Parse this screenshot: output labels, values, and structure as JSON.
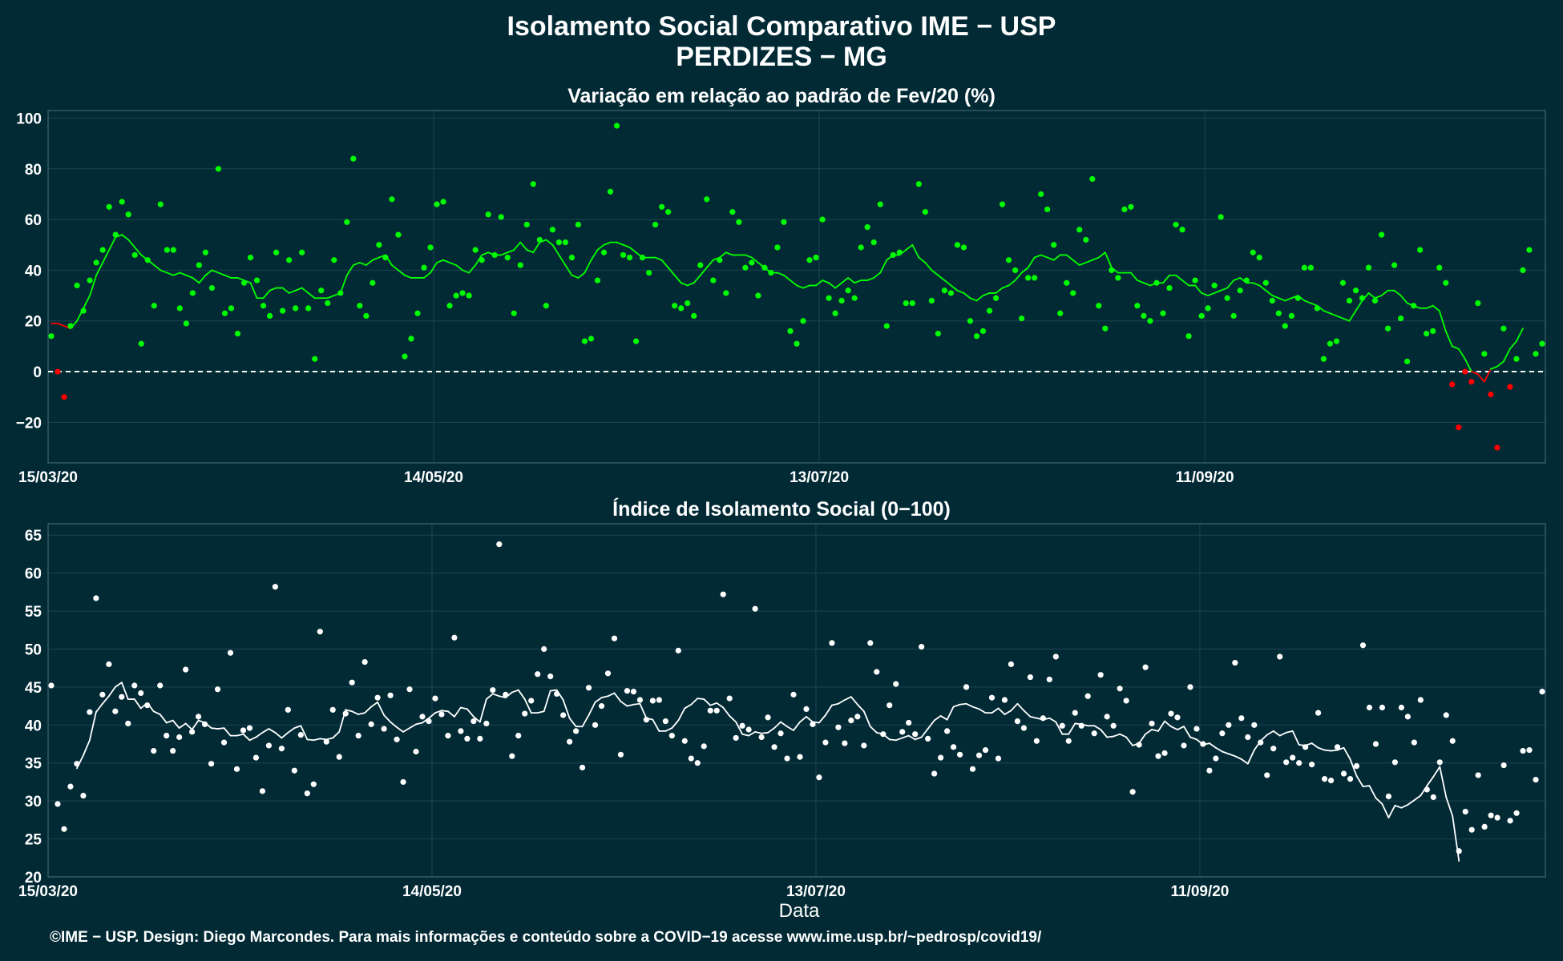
{
  "title_line1": "Isolamento Social Comparativo IME − USP",
  "title_line2": "PERDIZES − MG",
  "footer": "©IME − USP. Design: Diego Marcondes. Para mais informações e conteúdo sobre a COVID−19 acesse www.ime.usp.br/~pedrosp/covid19/",
  "colors": {
    "background": "#022a35",
    "positive": "#00ff00",
    "negative": "#ff0000",
    "index": "#ffffff",
    "grid": "#1d4450"
  },
  "chart_data": [
    {
      "type": "scatter",
      "title": "Variação em relação ao padrão de Fev/20 (%)",
      "xlabel": "",
      "ylabel": "",
      "x_start": "15/03/20",
      "x_ticks": [
        "15/03/20",
        "14/05/20",
        "13/07/20",
        "11/09/20"
      ],
      "x_tick_index": [
        0,
        60,
        120,
        180
      ],
      "y_ticks": [
        -20,
        0,
        20,
        40,
        60,
        80,
        100
      ],
      "ylim": [
        -36,
        103
      ],
      "reference_line": 0,
      "grid": true,
      "series": [
        {
          "values": [
            14,
            0,
            -10,
            18,
            34,
            24,
            36,
            43,
            48,
            65,
            54,
            67,
            62,
            46,
            11,
            44,
            26,
            66,
            48,
            48,
            25,
            19,
            31,
            42,
            47,
            33,
            80,
            23,
            25,
            15,
            35,
            45,
            36,
            26,
            22,
            47,
            24,
            44,
            25,
            47,
            25,
            5,
            32,
            27,
            44,
            31,
            59,
            84,
            26,
            22,
            35,
            50,
            45,
            68,
            54,
            6,
            13,
            23,
            41,
            49,
            66,
            67,
            26,
            30,
            31,
            30,
            48,
            44,
            62,
            46,
            61,
            45,
            23,
            42,
            58,
            74,
            52,
            26,
            56,
            51,
            51,
            45,
            58,
            12,
            13,
            36,
            47,
            71,
            97,
            46,
            45,
            12,
            45,
            39,
            58,
            65,
            63,
            26,
            25,
            27,
            22,
            42,
            68,
            36,
            44,
            31,
            63,
            59,
            41,
            43,
            30,
            41,
            39,
            49,
            59,
            16,
            11,
            20,
            44,
            45,
            60,
            29,
            23,
            28,
            32,
            29,
            49,
            57,
            51,
            66,
            18,
            46,
            47,
            27,
            27,
            74,
            63,
            28,
            15,
            32,
            31,
            50,
            49,
            20,
            14,
            16,
            24,
            29,
            66,
            44,
            40,
            21,
            37,
            37,
            70,
            64,
            50,
            23,
            35,
            31,
            56,
            52,
            76,
            26,
            17,
            40,
            37,
            64,
            65,
            26,
            22,
            20,
            35,
            23,
            33,
            58,
            56,
            14,
            36,
            22,
            25,
            34,
            61,
            29,
            22,
            32,
            36,
            47,
            45,
            35,
            28,
            23,
            18,
            22,
            29,
            41,
            41,
            25,
            5,
            11,
            12,
            35,
            28,
            32,
            29,
            41,
            28,
            54,
            17,
            42,
            21,
            4,
            26,
            48,
            15,
            16,
            41,
            35,
            -5,
            -22,
            0,
            -4,
            27,
            7,
            -9,
            -30,
            17,
            -6,
            5,
            40,
            48,
            7,
            11
          ]
        },
        {
          "start_index": 0,
          "values": [
            19,
            19,
            18,
            17,
            20,
            25,
            30,
            38,
            43,
            48,
            53,
            54,
            52,
            49,
            46,
            44,
            42,
            40,
            39,
            38,
            39,
            38,
            37,
            35,
            38,
            40,
            39,
            38,
            37,
            37,
            36,
            35,
            29,
            29,
            32,
            33,
            33,
            31,
            32,
            33,
            31,
            29,
            29,
            29,
            30,
            31,
            38,
            42,
            43,
            42,
            44,
            45,
            46,
            42,
            40,
            38,
            37,
            37,
            37,
            39,
            43,
            44,
            43,
            42,
            40,
            39,
            42,
            46,
            47,
            46,
            46,
            47,
            48,
            51,
            48,
            47,
            51,
            52,
            50,
            46,
            42,
            38,
            37,
            39,
            44,
            48,
            50,
            51,
            51,
            50,
            49,
            47,
            45,
            45,
            45,
            44,
            41,
            38,
            35,
            34,
            35,
            38,
            41,
            44,
            45,
            47,
            46,
            46,
            46,
            45,
            43,
            41,
            39,
            39,
            38,
            36,
            34,
            33,
            34,
            34,
            36,
            35,
            33,
            35,
            37,
            35,
            36,
            36,
            37,
            39,
            44,
            46,
            46,
            48,
            50,
            45,
            43,
            40,
            38,
            36,
            34,
            32,
            31,
            29,
            28,
            30,
            31,
            31,
            33,
            34,
            36,
            39,
            41,
            45,
            46,
            45,
            44,
            46,
            46,
            44,
            42,
            43,
            44,
            45,
            47,
            41,
            39,
            39,
            39,
            36,
            35,
            34,
            35,
            35,
            38,
            38,
            36,
            34,
            34,
            31,
            30,
            31,
            32,
            33,
            36,
            37,
            35,
            35,
            34,
            32,
            30,
            29,
            28,
            29,
            30,
            28,
            27,
            26,
            24,
            23,
            22,
            21,
            20,
            24,
            28,
            31,
            29,
            30,
            32,
            32,
            30,
            27,
            26,
            25,
            25,
            26,
            24,
            16,
            10,
            9,
            5,
            0,
            -1,
            -4,
            1,
            2,
            4,
            9,
            12,
            17
          ]
        }
      ]
    },
    {
      "type": "scatter",
      "title": "Índice de Isolamento Social (0−100)",
      "xlabel": "Data",
      "ylabel": "",
      "x_start": "15/03/20",
      "x_ticks": [
        "15/03/20",
        "14/05/20",
        "13/07/20",
        "11/09/20"
      ],
      "x_tick_index": [
        0,
        60,
        120,
        180
      ],
      "y_ticks": [
        20,
        25,
        30,
        35,
        40,
        45,
        50,
        55,
        60,
        65
      ],
      "ylim": [
        20,
        66.5
      ],
      "grid": true,
      "series": [
        {
          "values": [
            45.2,
            29.6,
            26.3,
            31.9,
            34.9,
            30.7,
            41.7,
            56.7,
            44.0,
            48.0,
            41.8,
            43.7,
            40.2,
            45.2,
            44.2,
            42.6,
            36.6,
            45.2,
            38.6,
            36.6,
            38.4,
            47.3,
            39.1,
            41.1,
            40.1,
            34.9,
            44.7,
            37.7,
            49.5,
            34.2,
            39.3,
            39.6,
            35.7,
            31.3,
            37.3,
            58.2,
            36.9,
            42.0,
            34.0,
            38.7,
            31.0,
            32.2,
            52.3,
            37.8,
            42.0,
            35.8,
            41.5,
            45.6,
            38.6,
            48.3,
            40.1,
            43.6,
            39.5,
            43.9,
            38.1,
            32.5,
            44.7,
            36.5,
            41.1,
            40.5,
            43.5,
            41.4,
            38.6,
            51.5,
            39.2,
            38.2,
            40.5,
            38.2,
            40.2,
            44.6,
            63.8,
            44.0,
            35.9,
            38.6,
            41.5,
            43.2,
            46.7,
            50.0,
            46.4,
            44.1,
            41.3,
            37.8,
            39.2,
            34.4,
            44.9,
            40.0,
            42.5,
            46.8,
            51.4,
            36.1,
            44.5,
            44.4,
            43.3,
            40.7,
            43.2,
            43.3,
            40.5,
            38.6,
            49.8,
            37.9,
            35.6,
            35.0,
            37.2,
            41.9,
            41.9,
            57.2,
            43.5,
            38.3,
            39.9,
            39.4,
            55.3,
            38.4,
            41.0,
            37.1,
            38.9,
            35.6,
            44.0,
            35.8,
            42.1,
            40.1,
            33.1,
            37.7,
            50.8,
            39.7,
            37.6,
            40.6,
            41.1,
            37.3,
            50.8,
            47.0,
            38.8,
            42.6,
            45.4,
            39.1,
            40.3,
            38.8,
            50.3,
            38.2,
            33.6,
            35.7,
            39.2,
            37.1,
            36.1,
            45.0,
            34.2,
            36.0,
            36.7,
            43.6,
            35.6,
            43.3,
            48.0,
            40.5,
            39.6,
            46.3,
            37.9,
            40.9,
            46.0,
            49.0,
            39.9,
            37.9,
            41.6,
            39.9,
            43.8,
            38.9,
            46.6,
            41.1,
            39.9,
            44.8,
            43.2,
            31.2,
            37.4,
            47.6,
            40.2,
            35.9,
            36.3,
            41.5,
            41.0,
            37.3,
            45.0,
            39.5,
            37.5,
            34.0,
            35.6,
            38.9,
            40.0,
            48.2,
            40.9,
            38.4,
            40.0,
            37.7,
            33.4,
            36.9,
            49.0,
            35.1,
            35.7,
            35.0,
            37.1,
            34.8,
            41.6,
            32.9,
            32.7,
            37.1,
            33.6,
            32.9,
            34.6,
            50.5,
            42.3,
            37.5,
            42.3,
            30.6,
            35.1,
            42.3,
            41.1,
            37.7,
            43.3,
            31.5,
            30.5,
            35.1,
            41.3,
            37.9,
            23.4,
            28.6,
            26.2,
            33.4,
            26.6,
            28.1,
            27.8,
            34.7,
            27.4,
            28.4,
            36.6,
            36.7,
            32.8,
            44.4
          ]
        },
        {
          "start_index": 4,
          "values": [
            34.3,
            36.0,
            38.0,
            41.7,
            42.8,
            43.8,
            45.0,
            45.6,
            43.4,
            43.4,
            42.2,
            42.9,
            41.8,
            41.4,
            40.3,
            40.6,
            39.6,
            40.2,
            39.4,
            40.6,
            40.3,
            39.6,
            39.5,
            39.6,
            38.6,
            38.6,
            38.8,
            38.0,
            38.4,
            39.0,
            39.5,
            39.0,
            38.3,
            39.0,
            39.6,
            39.9,
            38.1,
            38.0,
            38.2,
            38.1,
            38.3,
            39.1,
            42.0,
            41.8,
            41.4,
            41.6,
            42.4,
            43.0,
            41.3,
            40.4,
            39.7,
            39.1,
            39.6,
            40.1,
            40.3,
            40.9,
            41.6,
            41.9,
            41.8,
            41.1,
            42.3,
            42.1,
            41.1,
            40.4,
            43.4,
            44.1,
            43.8,
            43.6,
            44.3,
            44.6,
            43.4,
            41.6,
            41.6,
            41.8,
            44.5,
            44.6,
            43.3,
            40.9,
            39.8,
            39.8,
            41.3,
            43.0,
            43.6,
            43.8,
            44.2,
            43.1,
            42.5,
            42.7,
            42.8,
            40.9,
            40.7,
            39.2,
            39.2,
            39.6,
            40.6,
            42.2,
            42.7,
            43.5,
            43.4,
            42.6,
            42.9,
            42.3,
            41.2,
            40.4,
            38.8,
            38.6,
            39.1,
            38.9,
            39.0,
            39.6,
            40.4,
            39.8,
            39.3,
            40.4,
            41.1,
            40.4,
            40.3,
            41.3,
            42.6,
            42.8,
            43.3,
            43.7,
            42.7,
            41.8,
            39.8,
            39.0,
            38.8,
            38.1,
            38.0,
            38.3,
            38.6,
            38.1,
            38.4,
            39.5,
            40.6,
            41.2,
            40.7,
            42.4,
            42.7,
            42.8,
            42.4,
            42.1,
            41.6,
            41.6,
            42.2,
            41.4,
            41.9,
            42.8,
            41.9,
            41.1,
            40.9,
            40.7,
            40.9,
            40.4,
            38.8,
            38.8,
            40.2,
            40.1,
            39.9,
            39.9,
            39.4,
            38.4,
            38.5,
            38.8,
            38.4,
            37.3,
            37.6,
            38.8,
            39.4,
            39.2,
            40.5,
            39.8,
            39.4,
            39.8,
            38.4,
            38.1,
            37.4,
            37.6,
            37.0,
            36.5,
            36.2,
            35.9,
            35.5,
            34.9,
            36.7,
            37.9,
            38.7,
            39.2,
            38.6,
            39.0,
            39.2,
            37.4,
            37.3,
            37.6,
            37.0,
            36.7,
            36.6,
            36.7,
            37.0,
            35.5,
            33.3,
            31.9,
            32.0,
            30.4,
            29.6,
            27.8,
            29.4,
            29.1,
            29.5,
            30.1,
            30.7,
            32.0,
            33.2,
            34.5,
            30.5,
            28.0,
            22.1
          ]
        }
      ]
    }
  ]
}
